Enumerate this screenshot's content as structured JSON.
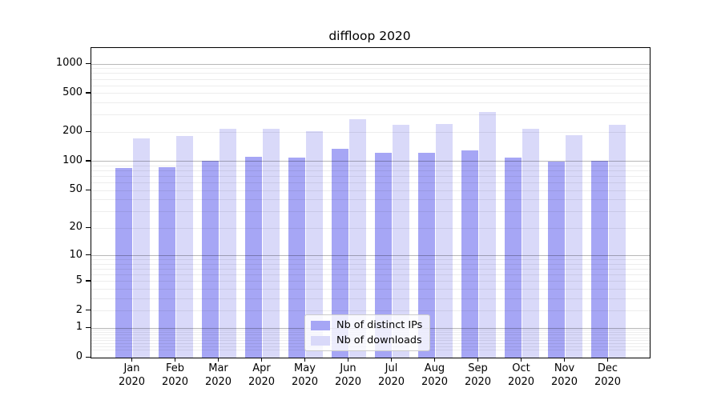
{
  "chart_data": {
    "type": "bar",
    "title": "diffloop 2020",
    "year": "2020",
    "months": [
      "Jan",
      "Feb",
      "Mar",
      "Apr",
      "May",
      "Jun",
      "Jul",
      "Aug",
      "Sep",
      "Oct",
      "Nov",
      "Dec"
    ],
    "series": [
      {
        "name": "Nb of distinct IPs",
        "color": "#a6a6f5",
        "values": [
          86,
          87,
          102,
          112,
          110,
          135,
          122,
          123,
          130,
          109,
          100,
          101
        ]
      },
      {
        "name": "Nb of downloads",
        "color": "#d9d9f9",
        "values": [
          173,
          184,
          216,
          219,
          205,
          270,
          241,
          245,
          322,
          216,
          188,
          240
        ]
      }
    ],
    "xlabel": "",
    "ylabel": "",
    "yscale": "log1p",
    "y_ticks": [
      0,
      1,
      2,
      5,
      10,
      20,
      50,
      100,
      200,
      500,
      1000
    ],
    "y_major_gridlines": [
      1,
      10,
      100,
      1000
    ],
    "ylim": [
      0,
      1458
    ],
    "grid": "horizontal, minor + major, drawn over bars",
    "legend_position": "inside lower-center"
  }
}
